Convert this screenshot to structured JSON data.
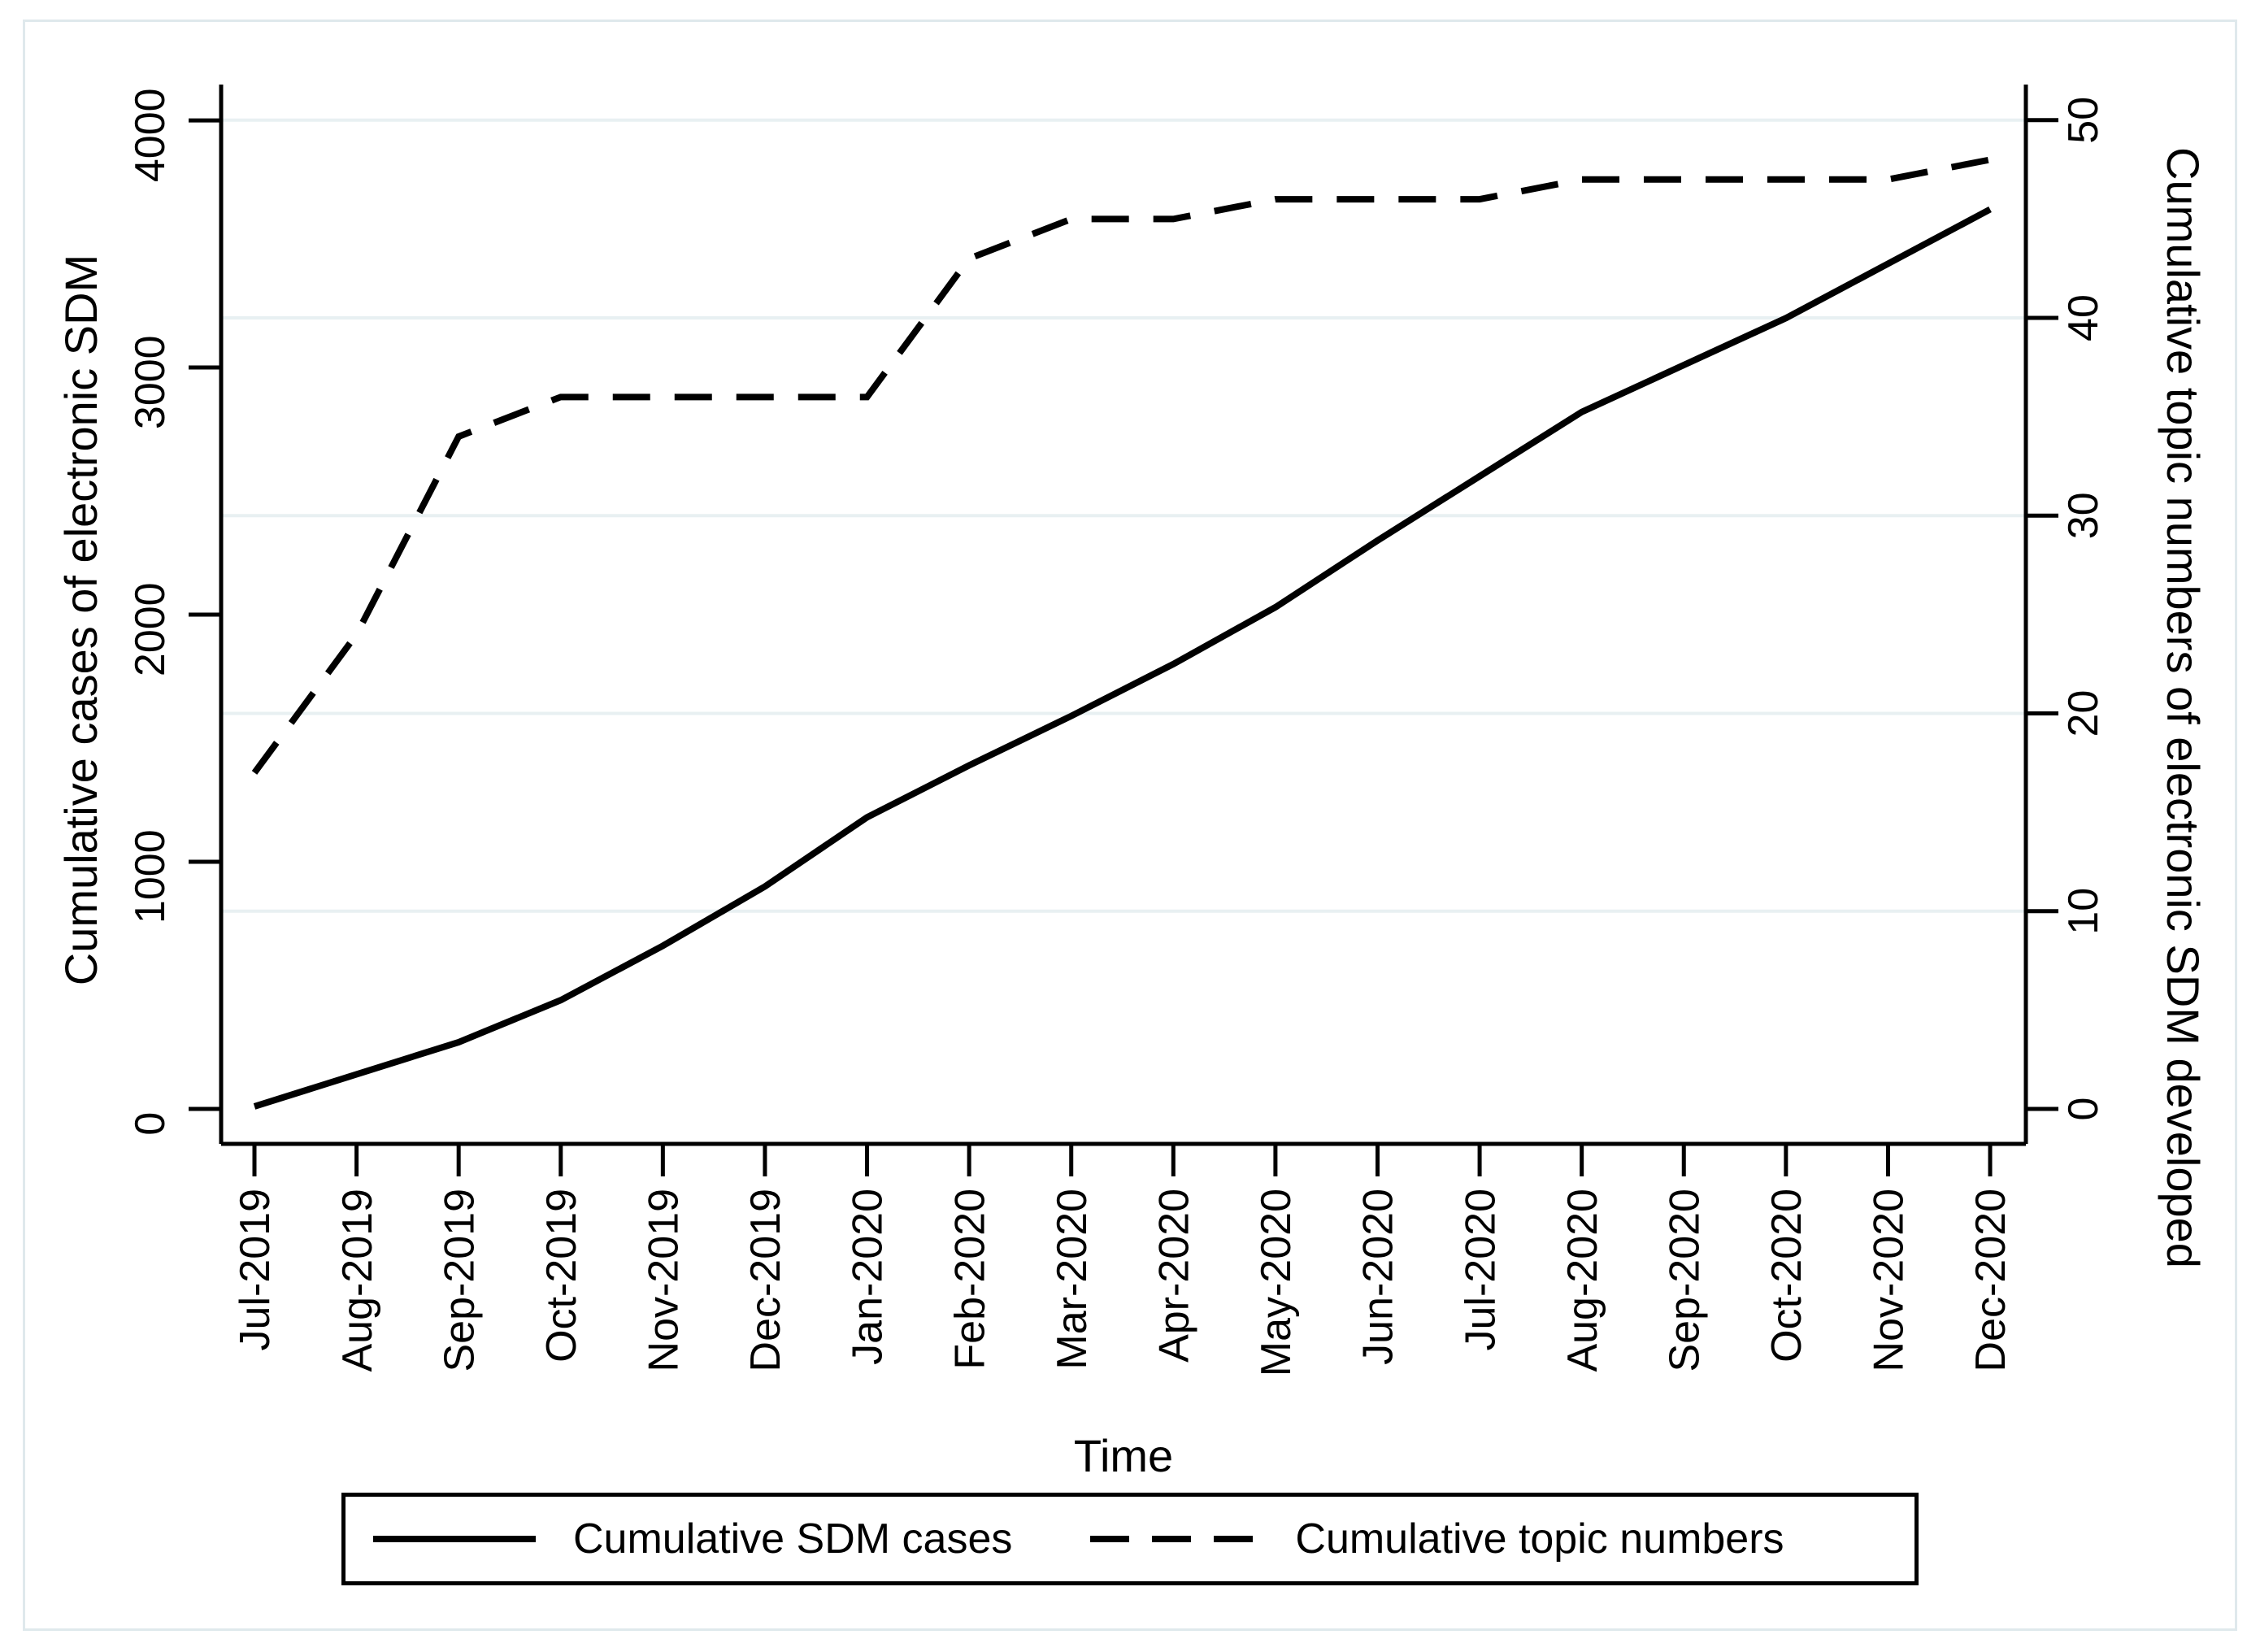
{
  "figure": {
    "background": "#ffffff",
    "frame_color": "#dfe9ec",
    "line_color": "#000000",
    "grid_color": "#e8f0f2"
  },
  "axes": {
    "x_title": "Time",
    "left_title": "Cumulative cases of electronic SDM",
    "right_title": "Cumulative topic numbers of electronic SDM developed",
    "left_tick_labels": [
      "0",
      "1000",
      "2000",
      "3000",
      "4000"
    ],
    "right_tick_labels": [
      "0",
      "10",
      "20",
      "30",
      "40",
      "50"
    ]
  },
  "legend": {
    "items": [
      {
        "label": "Cumulative SDM cases",
        "style": "solid"
      },
      {
        "label": "Cumulative topic numbers",
        "style": "dashed"
      }
    ]
  },
  "chart_data": {
    "type": "line",
    "title": "",
    "xlabel": "Time",
    "ylabel_left": "Cumulative cases of electronic SDM",
    "ylabel_right": "Cumulative topic numbers of electronic SDM developed",
    "x": [
      "Jul-2019",
      "Aug-2019",
      "Sep-2019",
      "Oct-2019",
      "Nov-2019",
      "Dec-2019",
      "Jan-2020",
      "Feb-2020",
      "Mar-2020",
      "Apr-2020",
      "May-2020",
      "Jun-2020",
      "Jul-2020",
      "Aug-2020",
      "Sep-2020",
      "Oct-2020",
      "Nov-2020",
      "Dec-2020"
    ],
    "series": [
      {
        "name": "Cumulative SDM cases",
        "axis": "left",
        "style": "solid",
        "values": [
          10,
          140,
          270,
          440,
          660,
          900,
          1180,
          1390,
          1590,
          1800,
          2030,
          2300,
          2560,
          2820,
          3010,
          3200,
          3420,
          3640
        ]
      },
      {
        "name": "Cumulative topic numbers",
        "axis": "right",
        "style": "dashed",
        "values": [
          17,
          24,
          34,
          36,
          36,
          36,
          36,
          43,
          45,
          45,
          46,
          46,
          46,
          47,
          47,
          47,
          47,
          48
        ]
      }
    ],
    "left_ticks": [
      0,
      1000,
      2000,
      3000,
      4000
    ],
    "right_ticks": [
      0,
      10,
      20,
      30,
      40,
      50
    ],
    "left_ylim": [
      0,
      4145
    ],
    "right_ylim": [
      0,
      51.8
    ],
    "grid": "horizontal-at-right-ticks",
    "legend_position": "bottom"
  }
}
